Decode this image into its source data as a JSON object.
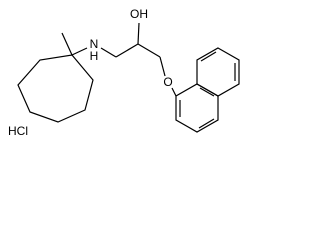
{
  "atoms": {
    "hydroxyl": "OH",
    "amine_n": "N",
    "amine_h": "H",
    "ether": "O",
    "salt": "HCl"
  }
}
